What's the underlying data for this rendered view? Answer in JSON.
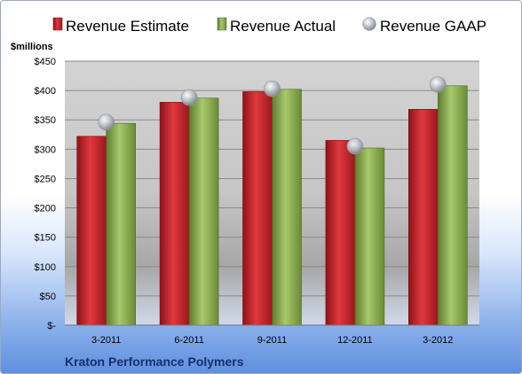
{
  "chart_data": {
    "type": "bar",
    "title": "",
    "ylabel": "$millions",
    "xlabel": "",
    "categories": [
      "3-2011",
      "6-2011",
      "9-2011",
      "12-2011",
      "3-2012"
    ],
    "series": [
      {
        "name": "Revenue Estimate",
        "kind": "bar",
        "color": "#c0262d",
        "values": [
          322,
          380,
          398,
          315,
          368
        ]
      },
      {
        "name": "Revenue Actual",
        "kind": "bar",
        "color": "#8cac55",
        "values": [
          344,
          387,
          402,
          302,
          408
        ]
      },
      {
        "name": "Revenue GAAP",
        "kind": "marker",
        "color": "#b7bcc6",
        "values": [
          346,
          388,
          403,
          305,
          410
        ]
      }
    ],
    "ylim": [
      0,
      450
    ],
    "yticks": [
      0,
      50,
      100,
      150,
      200,
      250,
      300,
      350,
      400,
      450
    ],
    "ytick_labels": [
      "$-",
      "$50",
      "$100",
      "$150",
      "$200",
      "$250",
      "$300",
      "$350",
      "$400",
      "$450"
    ],
    "legend_position": "top",
    "grid": true
  },
  "footer": {
    "company": "Kraton Performance Polymers"
  }
}
